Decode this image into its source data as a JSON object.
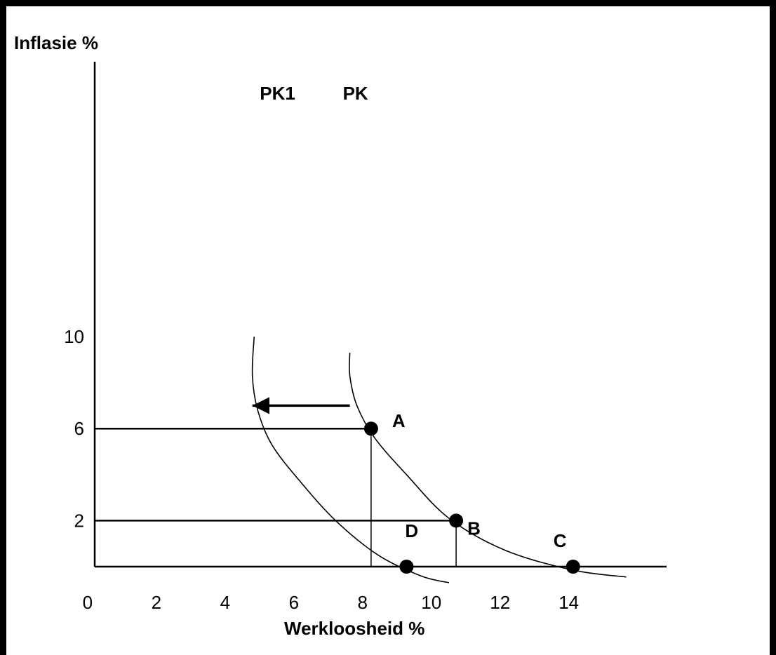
{
  "chart_data": {
    "type": "line",
    "title": "",
    "ylabel": "Inflasie %",
    "xlabel": "Werkloosheid  %",
    "x_ticks": [
      "0",
      "2",
      "4",
      "6",
      "8",
      "10",
      "12",
      "14"
    ],
    "y_ticks": [
      "2",
      "6",
      "10"
    ],
    "xlim": [
      0,
      16
    ],
    "ylim": [
      0,
      10
    ],
    "series": [
      {
        "name": "PK",
        "x": [
          7.2,
          7.2,
          7.4,
          7.9,
          8.8,
          10.0,
          11.6,
          13.5,
          15.0
        ],
        "y": [
          9.3,
          8.3,
          7.0,
          5.6,
          4.0,
          2.1,
          0.7,
          -0.15,
          -0.45
        ]
      },
      {
        "name": "PK1",
        "x": [
          4.5,
          4.45,
          4.6,
          5.0,
          5.8,
          6.8,
          8.0,
          9.2,
          10.0
        ],
        "y": [
          10.0,
          8.3,
          6.8,
          5.3,
          3.7,
          2.0,
          0.5,
          -0.4,
          -0.7
        ]
      }
    ],
    "points": [
      {
        "label": "A",
        "x": 7.8,
        "y": 6
      },
      {
        "label": "B",
        "x": 10.2,
        "y": 2
      },
      {
        "label": "C",
        "x": 13.5,
        "y": 0
      },
      {
        "label": "D",
        "x": 8.8,
        "y": 0
      }
    ],
    "guide_lines": [
      {
        "label": "A",
        "x": 7.8,
        "y": 6
      },
      {
        "label": "B",
        "x": 10.2,
        "y": 2
      }
    ],
    "arrow": {
      "from": [
        7.2,
        7.0
      ],
      "to": [
        4.45,
        7.0
      ]
    }
  }
}
